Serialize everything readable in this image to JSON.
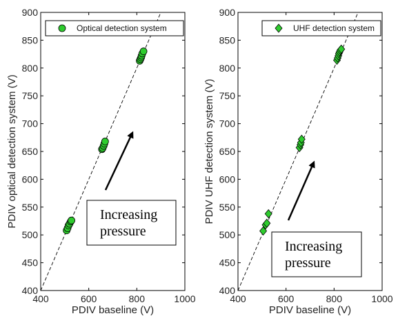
{
  "chart_data": [
    {
      "type": "scatter",
      "xlabel": "PDIV baseline (V)",
      "ylabel": "PDIV optical detection system (V)",
      "xlim": [
        400,
        1000
      ],
      "ylim": [
        400,
        900
      ],
      "xticks": [
        400,
        600,
        800,
        1000
      ],
      "yticks": [
        400,
        450,
        500,
        550,
        600,
        650,
        700,
        750,
        800,
        850,
        900
      ],
      "grid": false,
      "legend_position": "top-right",
      "reference_line": "dashed y = x",
      "series": [
        {
          "name": "Optical detection system",
          "marker": "circle",
          "color": "#2ecc2e",
          "points": [
            [
              508,
              508
            ],
            [
              512,
              512
            ],
            [
              516,
              517
            ],
            [
              520,
              520
            ],
            [
              525,
              524
            ],
            [
              528,
              526
            ],
            [
              655,
              654
            ],
            [
              658,
              656
            ],
            [
              662,
              660
            ],
            [
              665,
              664
            ],
            [
              668,
              668
            ],
            [
              812,
              813
            ],
            [
              815,
              816
            ],
            [
              818,
              819
            ],
            [
              820,
              822
            ],
            [
              823,
              826
            ],
            [
              828,
              830
            ]
          ]
        }
      ],
      "annotation": {
        "lines": [
          "Increasing",
          "pressure"
        ]
      }
    },
    {
      "type": "scatter",
      "xlabel": "PDIV baseline (V)",
      "ylabel": "PDIV UHF detection system (V)",
      "xlim": [
        400,
        1000
      ],
      "ylim": [
        400,
        900
      ],
      "xticks": [
        400,
        600,
        800,
        1000
      ],
      "yticks": [
        400,
        450,
        500,
        550,
        600,
        650,
        700,
        750,
        800,
        850,
        900
      ],
      "grid": false,
      "legend_position": "top-right",
      "reference_line": "dashed y = x",
      "series": [
        {
          "name": "UHF detection system",
          "marker": "diamond",
          "color": "#2ecc2e",
          "points": [
            [
              505,
              507
            ],
            [
              515,
              518
            ],
            [
              520,
              521
            ],
            [
              527,
              538
            ],
            [
              656,
              657
            ],
            [
              660,
              662
            ],
            [
              662,
              666
            ],
            [
              665,
              672
            ],
            [
              812,
              814
            ],
            [
              815,
              818
            ],
            [
              818,
              822
            ],
            [
              820,
              826
            ],
            [
              823,
              829
            ],
            [
              826,
              832
            ],
            [
              830,
              834
            ]
          ]
        }
      ],
      "annotation": {
        "lines": [
          "Increasing",
          "pressure"
        ]
      }
    }
  ]
}
